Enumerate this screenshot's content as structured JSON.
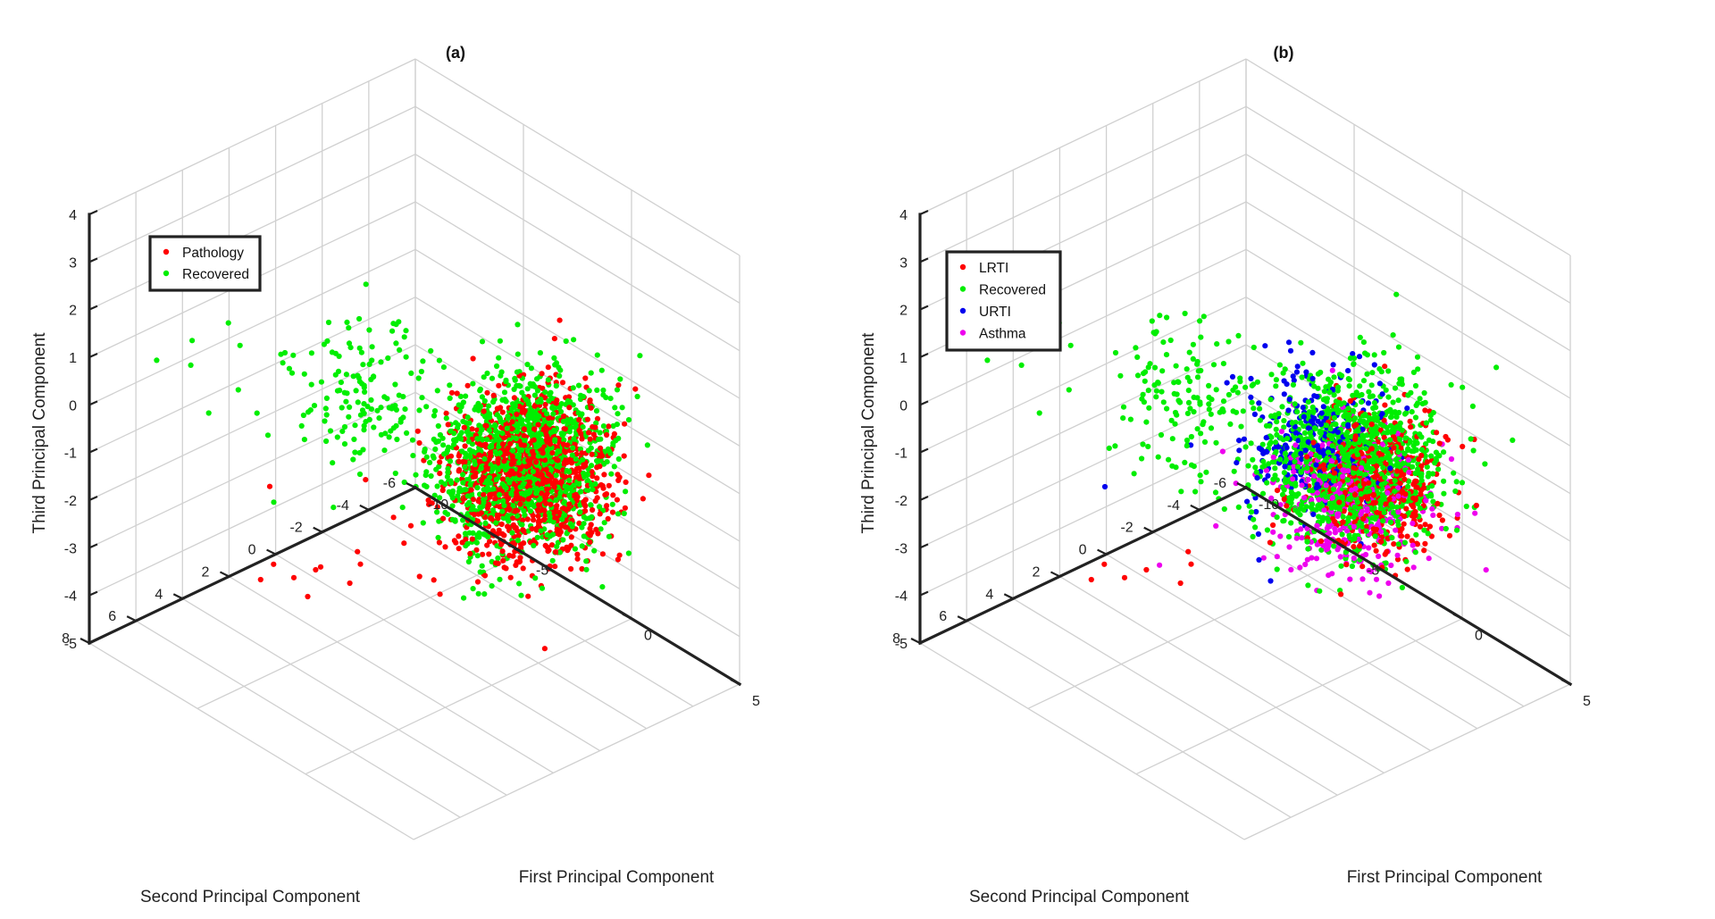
{
  "chart_data": [
    {
      "type": "scatter",
      "panel": "a",
      "title": "(a)",
      "xlabel": "First Principal Component",
      "ylabel": "Second Principal Component",
      "zlabel": "Third Principal Component",
      "xlim": [
        -10,
        5
      ],
      "ylim": [
        -6,
        8
      ],
      "zlim": [
        -5,
        4
      ],
      "xticks": [
        -10,
        -5,
        0,
        5
      ],
      "yticks": [
        -6,
        -4,
        -2,
        0,
        2,
        4,
        6,
        8
      ],
      "zticks": [
        -5,
        -4,
        -3,
        -2,
        -1,
        0,
        1,
        2,
        3,
        4
      ],
      "grid": true,
      "box": true,
      "legend_position": "top-left",
      "colors": {
        "Pathology": "#ff0000",
        "Recovered": "#00ee00"
      },
      "series": [
        {
          "name": "Pathology",
          "color": "#ff0000",
          "clusters": [
            {
              "center": [
                1.2,
                -0.5,
                -0.4
              ],
              "spread": [
                2.2,
                2.4,
                1.2
              ],
              "count": 1100
            }
          ],
          "points": [
            [
              -8.8,
              1.2,
              -4.6
            ],
            [
              -8.0,
              2.5,
              -4.4
            ],
            [
              -7.5,
              0.6,
              -4.5
            ],
            [
              -7.0,
              2.0,
              -4.2
            ],
            [
              -6.3,
              1.5,
              -3.9
            ],
            [
              -6.0,
              0.2,
              -3.8
            ],
            [
              -5.5,
              2.8,
              -4.0
            ],
            [
              -5.0,
              1.0,
              -3.6
            ],
            [
              -4.6,
              -0.5,
              -3.4
            ],
            [
              -4.2,
              2.2,
              -3.5
            ],
            [
              -3.5,
              -1.0,
              -3.2
            ],
            [
              -6.5,
              3.5,
              -1.8
            ]
          ]
        },
        {
          "name": "Recovered",
          "color": "#00ee00",
          "clusters": [
            {
              "center": [
                1.0,
                -0.3,
                -0.1
              ],
              "spread": [
                2.4,
                2.6,
                1.3
              ],
              "count": 1200
            },
            {
              "center": [
                -3.5,
                2.5,
                0.6
              ],
              "spread": [
                2.2,
                2.0,
                1.2
              ],
              "count": 140
            }
          ],
          "points": [
            [
              -8.5,
              6.5,
              1.0
            ],
            [
              -8.0,
              5.5,
              0.8
            ],
            [
              -7.4,
              6.0,
              1.6
            ],
            [
              -7.2,
              4.2,
              0.2
            ],
            [
              -6.8,
              5.0,
              1.9
            ],
            [
              -6.2,
              6.4,
              0.5
            ],
            [
              -5.8,
              3.5,
              1.2
            ],
            [
              -5.4,
              5.8,
              2.0
            ],
            [
              -4.8,
              4.6,
              1.7
            ],
            [
              -4.4,
              6.0,
              0.9
            ]
          ]
        }
      ]
    },
    {
      "type": "scatter",
      "panel": "b",
      "title": "(b)",
      "xlabel": "First Principal Component",
      "ylabel": "Second Principal Component",
      "zlabel": "Third Principal Component",
      "xlim": [
        -10,
        5
      ],
      "ylim": [
        -6,
        8
      ],
      "zlim": [
        -5,
        4
      ],
      "xticks": [
        -10,
        -5,
        0,
        5
      ],
      "yticks": [
        -6,
        -4,
        -2,
        0,
        2,
        4,
        6,
        8
      ],
      "zticks": [
        -5,
        -4,
        -3,
        -2,
        -1,
        0,
        1,
        2,
        3,
        4
      ],
      "grid": true,
      "box": true,
      "legend_position": "top-left",
      "colors": {
        "LRTI": "#ff0000",
        "Recovered": "#00ee00",
        "URTI": "#0000ee",
        "Asthma": "#ee00ee"
      },
      "series": [
        {
          "name": "LRTI",
          "color": "#ff0000",
          "clusters": [
            {
              "center": [
                1.6,
                -0.8,
                -0.5
              ],
              "spread": [
                1.8,
                2.0,
                1.1
              ],
              "count": 500
            }
          ],
          "points": [
            [
              -8.8,
              1.2,
              -4.6
            ],
            [
              -8.0,
              2.5,
              -4.4
            ],
            [
              -7.5,
              0.6,
              -4.5
            ],
            [
              -7.0,
              2.0,
              -4.2
            ],
            [
              -6.0,
              0.2,
              -3.8
            ],
            [
              -5.0,
              1.0,
              -3.6
            ],
            [
              -4.2,
              2.2,
              -3.5
            ],
            [
              -3.5,
              -1.0,
              -3.2
            ]
          ]
        },
        {
          "name": "Recovered",
          "color": "#00ee00",
          "clusters": [
            {
              "center": [
                1.0,
                -0.3,
                -0.1
              ],
              "spread": [
                2.4,
                2.6,
                1.3
              ],
              "count": 1200
            },
            {
              "center": [
                -3.5,
                2.5,
                0.6
              ],
              "spread": [
                2.2,
                2.0,
                1.2
              ],
              "count": 140
            }
          ],
          "points": [
            [
              -8.5,
              6.5,
              1.0
            ],
            [
              -8.0,
              5.5,
              0.8
            ],
            [
              -7.4,
              6.0,
              1.6
            ],
            [
              -7.2,
              4.2,
              0.2
            ],
            [
              -6.8,
              5.0,
              1.9
            ],
            [
              -6.2,
              6.4,
              0.5
            ],
            [
              -5.8,
              3.5,
              1.2
            ],
            [
              -5.4,
              5.8,
              2.0
            ]
          ]
        },
        {
          "name": "URTI",
          "color": "#0000ee",
          "clusters": [
            {
              "center": [
                0.5,
                0.8,
                0.4
              ],
              "spread": [
                2.0,
                2.2,
                1.1
              ],
              "count": 280
            }
          ],
          "points": [
            [
              -6.4,
              3.4,
              -1.8
            ],
            [
              -3.8,
              -0.8,
              -3.6
            ],
            [
              -4.8,
              1.2,
              -1.0
            ]
          ]
        },
        {
          "name": "Asthma",
          "color": "#ee00ee",
          "clusters": [
            {
              "center": [
                0.8,
                -0.4,
                -1.0
              ],
              "spread": [
                2.0,
                2.2,
                1.1
              ],
              "count": 360
            }
          ],
          "points": [
            [
              -5.6,
              1.8,
              -3.6
            ],
            [
              -4.5,
              0.4,
              -2.8
            ]
          ]
        }
      ]
    }
  ]
}
